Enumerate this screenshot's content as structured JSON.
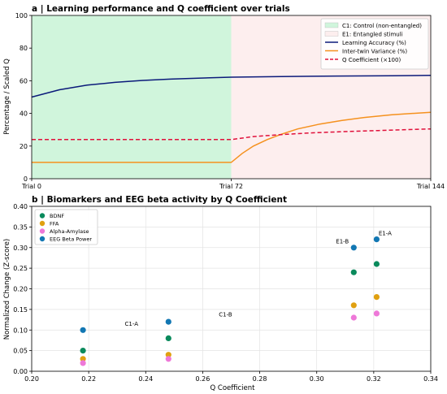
{
  "chart_data": [
    {
      "type": "line",
      "title": "a | Learning performance and Q coefficient over trials",
      "xlabel": "",
      "ylabel": "Percentage / Scaled Q",
      "xlim": [
        0,
        144
      ],
      "ylim": [
        0,
        100
      ],
      "x_ticks": [
        0,
        72,
        144
      ],
      "x_tick_labels": [
        "Trial 0",
        "Trial 72",
        "Trial 144"
      ],
      "y_ticks": [
        0,
        20,
        40,
        60,
        80,
        100
      ],
      "grid": false,
      "legend_position": "top-right",
      "regions": [
        {
          "name": "C1: Control (non-entangled)",
          "x_range": [
            0,
            72
          ],
          "color": "#d0f5dc"
        },
        {
          "name": "E1: Entangled stimuli",
          "x_range": [
            72,
            144
          ],
          "color": "#fdeeee"
        }
      ],
      "series": [
        {
          "name": "Learning Accuracy (%)",
          "color": "#0b1a7a",
          "style": "solid",
          "x": [
            0,
            10,
            20,
            30,
            40,
            50,
            60,
            72,
            90,
            110,
            130,
            144
          ],
          "values": [
            50,
            54.5,
            57.3,
            59,
            60.2,
            61,
            61.6,
            62.2,
            62.6,
            62.9,
            63.1,
            63.3
          ]
        },
        {
          "name": "Inter-twin Variance (%)",
          "color": "#f5911e",
          "style": "solid",
          "x": [
            0,
            72,
            76,
            80,
            85,
            90,
            96,
            104,
            112,
            120,
            130,
            144
          ],
          "values": [
            10,
            10,
            15.5,
            20,
            24,
            27.2,
            30.5,
            33.5,
            35.7,
            37.5,
            39.2,
            40.7
          ]
        },
        {
          "name": "Q Coefficient (×100)",
          "color": "#e0103a",
          "style": "dashed",
          "x": [
            0,
            72,
            80,
            90,
            100,
            112,
            125,
            144
          ],
          "values": [
            24,
            24,
            25.8,
            27,
            28,
            28.8,
            29.5,
            30.5
          ]
        }
      ]
    },
    {
      "type": "scatter",
      "title": "b | Biomarkers and EEG beta activity by Q Coefficient",
      "xlabel": "Q Coefficient",
      "ylabel": "Normalized Change (Z-score)",
      "xlim": [
        0.2,
        0.34
      ],
      "ylim": [
        0.0,
        0.4
      ],
      "x_ticks": [
        "0.20",
        "0.22",
        "0.24",
        "0.26",
        "0.28",
        "0.30",
        "0.32",
        "0.34"
      ],
      "y_ticks": [
        "0.00",
        "0.05",
        "0.10",
        "0.15",
        "0.20",
        "0.25",
        "0.30",
        "0.35",
        "0.40"
      ],
      "grid": true,
      "legend_position": "top-left",
      "series": [
        {
          "name": "BDNF",
          "color": "#0a8a5c",
          "points": [
            [
              0.218,
              0.05
            ],
            [
              0.248,
              0.08
            ],
            [
              0.313,
              0.24
            ],
            [
              0.321,
              0.26
            ]
          ]
        },
        {
          "name": "FFA",
          "color": "#e0a010",
          "points": [
            [
              0.218,
              0.03
            ],
            [
              0.248,
              0.04
            ],
            [
              0.313,
              0.16
            ],
            [
              0.321,
              0.18
            ]
          ]
        },
        {
          "name": "Alpha-Amylase",
          "color": "#ee78d8",
          "points": [
            [
              0.218,
              0.02
            ],
            [
              0.248,
              0.03
            ],
            [
              0.313,
              0.13
            ],
            [
              0.321,
              0.14
            ]
          ]
        },
        {
          "name": "EEG Beta Power",
          "color": "#1277b3",
          "points": [
            [
              0.218,
              0.1
            ],
            [
              0.248,
              0.12
            ],
            [
              0.313,
              0.3
            ],
            [
              0.321,
              0.32
            ]
          ]
        }
      ],
      "annotations": [
        {
          "text": "C1-A",
          "x": 0.235,
          "y": 0.11
        },
        {
          "text": "C1-B",
          "x": 0.268,
          "y": 0.133
        },
        {
          "text": "E1-B",
          "x": 0.309,
          "y": 0.31
        },
        {
          "text": "E1-A",
          "x": 0.324,
          "y": 0.33
        }
      ]
    }
  ]
}
